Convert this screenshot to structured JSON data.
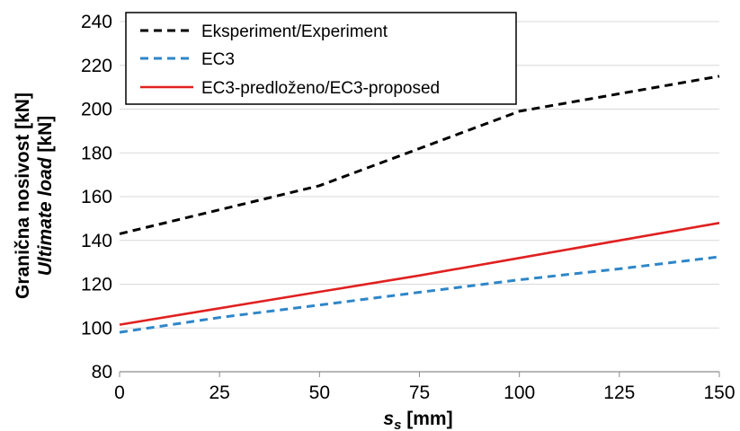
{
  "chart_data": {
    "type": "line",
    "x": [
      0,
      25,
      50,
      75,
      100,
      125,
      150
    ],
    "xlim": [
      0,
      150
    ],
    "ylim": [
      80,
      240
    ],
    "xticks": [
      0,
      25,
      50,
      75,
      100,
      125,
      150
    ],
    "yticks": [
      80,
      100,
      120,
      140,
      160,
      180,
      200,
      220,
      240
    ],
    "xlabel": {
      "symbol": "s",
      "subscript": "s",
      "unit": " [mm]"
    },
    "ylabel": {
      "line1": "Granična nosivost [kN]",
      "line2_italic": "Ultimate load",
      "line2_unit": " [kN]"
    },
    "grid": {
      "horizontal": true,
      "color": "#d9d9d9"
    },
    "legend": {
      "position": "top-left"
    },
    "series": [
      {
        "name": "Eksperiment/Experiment",
        "color": "#000000",
        "dash": "dashed",
        "values": [
          143,
          154,
          165,
          182,
          199,
          207,
          215
        ]
      },
      {
        "name": "EC3",
        "color": "#2e86c8",
        "dash": "dashed",
        "values": [
          98,
          104.8,
          110.5,
          116.3,
          122,
          127,
          132.5
        ]
      },
      {
        "name": "EC3-predloženo/EC3-proposed",
        "color": "#e02020",
        "dash": "solid",
        "values": [
          101.5,
          109,
          116.5,
          124,
          132,
          140,
          148
        ]
      }
    ]
  }
}
